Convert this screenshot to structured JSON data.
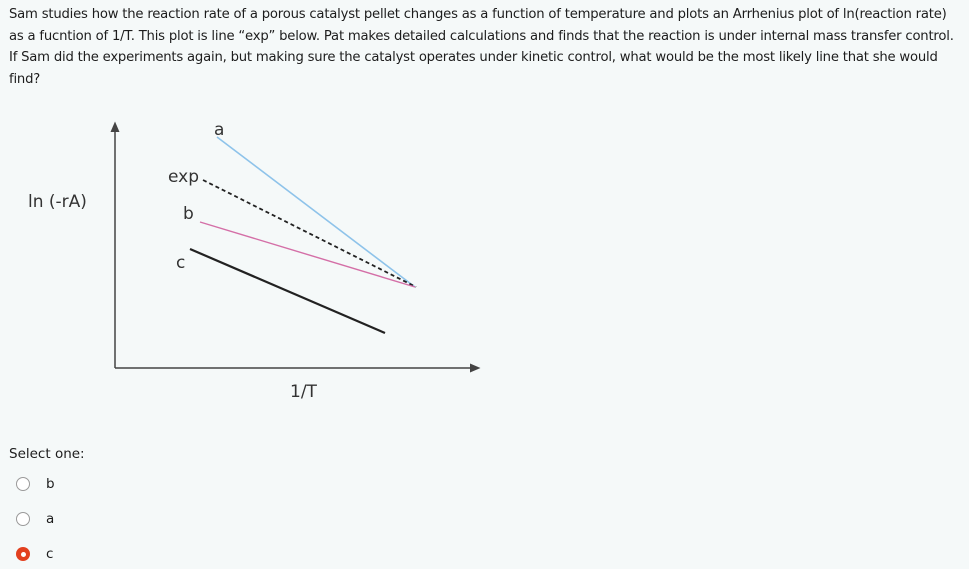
{
  "question": {
    "text": "Sam studies how the reaction rate of a porous catalyst pellet changes as a function of temperature and plots an Arrhenius plot of ln(reaction rate) as a fucntion of 1/T. This plot is line “exp” below. Pat makes detailed calculations and finds that the reaction is under internal mass transfer control. If Sam did the experiments again, but making sure the catalyst operates under kinetic control, what would be the most likely line that she would find?"
  },
  "diagram": {
    "y_axis_label": "ln (-rA)",
    "x_axis_label": "1/T",
    "lines": [
      {
        "label": "a",
        "color": "#8ec3ea",
        "style": "solid"
      },
      {
        "label": "exp",
        "color": "#222222",
        "style": "dashed"
      },
      {
        "label": "b",
        "color": "#d46fa7",
        "style": "solid"
      },
      {
        "label": "c",
        "color": "#222222",
        "style": "solid"
      }
    ]
  },
  "answer": {
    "prompt": "Select one:",
    "options": [
      {
        "label": "b",
        "selected": false
      },
      {
        "label": "a",
        "selected": false
      },
      {
        "label": "c",
        "selected": true
      }
    ],
    "accent_color": "#e2401f"
  }
}
